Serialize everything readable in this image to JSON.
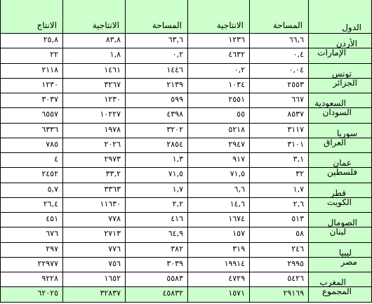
{
  "header": {
    "country": "الدول",
    "area_1": "المساحة",
    "production_1": "الانتاجية",
    "area_2": "المساحة",
    "production_2": "الانتاجية",
    "output": "الانتاج"
  },
  "rows": [
    {
      "country": "الأردن",
      "area_1": "٦٦,٦",
      "production_1": "١٢٣٦",
      "area_2": "٦٣,٦",
      "production_2": "٨٣,٨",
      "output": "٢٥,٨"
    },
    {
      "country": "الإمارات",
      "area_1": "٠,٤",
      "production_1": "٤٦٣٢",
      "area_2": "٠,٢",
      "production_2": "١,٨",
      "output": "٢٢"
    },
    {
      "country": "تونس",
      "area_1": "٠,٠٤",
      "production_1": "٠,٢",
      "area_2": "١٤٤٦",
      "production_2": "١٤٦١",
      "output": "٢١١٨"
    },
    {
      "country": "الجزائر",
      "area_1": "٢٥٥٣",
      "production_1": "١٠٣٤",
      "area_2": "٢١٣٩",
      "production_2": "٣٢٦٧",
      "output": "١٢٣٠"
    },
    {
      "country": "السعودية",
      "area_1": "٦٦٧",
      "production_1": "٢٥٥١",
      "area_2": "٥٩٩",
      "production_2": "١٢٣٠",
      "output": "٣٠٣٧"
    },
    {
      "country": "السودان",
      "area_1": "٨٥٣٧",
      "production_1": "٥٥",
      "area_2": "٤٣٩٨",
      "production_2": "١٠٢٢٧",
      "output": "٦٥٥٧"
    },
    {
      "country": "سوريا",
      "area_1": "٣١١٧",
      "production_1": "٥٢١٨",
      "area_2": "٣٢٠٢",
      "production_2": "١٩٧٨",
      "output": "٦٣٣٦"
    },
    {
      "country": "العراق",
      "area_1": "٣١٠١",
      "production_1": "٢٩٤٧",
      "area_2": "٢٨٥٤",
      "production_2": "٢٠٢٦",
      "output": "٧٨٥"
    },
    {
      "country": "عمان",
      "area_1": "٣,١",
      "production_1": "٩١٧",
      "area_2": "١,٣",
      "production_2": "٢٩٧٣",
      "output": "٤"
    },
    {
      "country": "فلسطين",
      "area_1": "٣٢",
      "production_1": "٧١,٥",
      "area_2": "٧١,٥",
      "production_2": "٣٣,٢",
      "output": "٢٤٥٢"
    },
    {
      "country": "قطر",
      "area_1": "١,٧",
      "production_1": "٦,٦",
      "area_2": "١,٧",
      "production_2": "٣٣٦٣",
      "output": "٥,٧"
    },
    {
      "country": "الكويت",
      "area_1": "٢,٦",
      "production_1": "١٤,٦",
      "area_2": "٢,٢",
      "production_2": "١١٦٣٠",
      "output": "٢٦,٤"
    },
    {
      "country": "الصومال",
      "area_1": "٥١٣",
      "production_1": "١٦٧٤",
      "area_2": "٤١٦",
      "production_2": "٧٧٨",
      "output": "٤٥١"
    },
    {
      "country": "لبنان",
      "area_1": "٥٨",
      "production_1": "١٥٧",
      "area_2": "٦٤,٩",
      "production_2": "٢٧١٣",
      "output": "٦٧٦"
    },
    {
      "country": "ليبيا",
      "area_1": "٢٤٦",
      "production_1": "٣١٩",
      "area_2": "٣٨٢",
      "production_2": "٧٧٦",
      "output": "٢٩٧"
    },
    {
      "country": "مصر",
      "area_1": "٢٩٩٥",
      "production_1": "١٩٩١٤",
      "area_2": "٣٠٣٩",
      "production_2": "٧٥٦",
      "output": "٢٢٩٧٧"
    },
    {
      "country": "المغرب",
      "area_1": "٥٤٢٦",
      "production_1": "٤٧٢٩",
      "area_2": "٥٥٨٣",
      "production_2": "١٦٥٢",
      "output": "٩٢٢٨"
    },
    {
      "country": "المجموع",
      "area_1": "٢٩١٦٩",
      "production_1": "١٥٧١",
      "area_2": "٤٥٨٣٢",
      "production_2": "٣٢٨٣٧",
      "output": "٦٢٠٢٥"
    }
  ],
  "colors": {
    "highlight": "#ccffcc",
    "grid": "#000000"
  }
}
